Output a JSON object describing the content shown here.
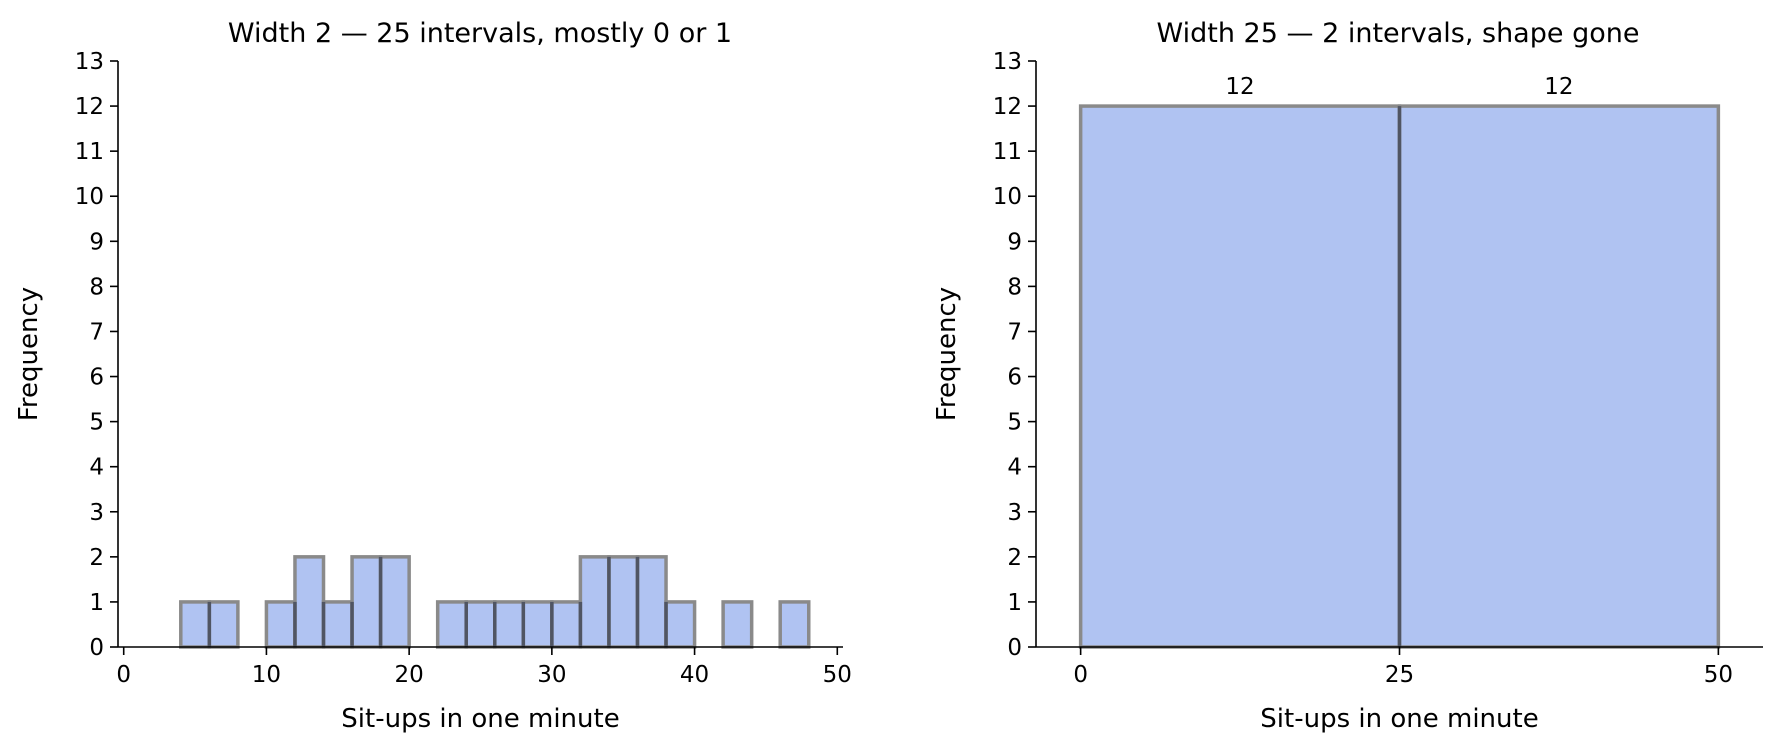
{
  "chart_data": [
    {
      "type": "bar",
      "title": "Width 2 — 25 intervals, mostly 0 or 1",
      "xlabel": "Sit-ups in one minute",
      "ylabel": "Frequency",
      "xlim": [
        -0.4,
        50.4
      ],
      "ylim": [
        0,
        13
      ],
      "x_ticks": [
        0,
        10,
        20,
        30,
        40,
        50
      ],
      "y_ticks": [
        0,
        1,
        2,
        3,
        4,
        5,
        6,
        7,
        8,
        9,
        10,
        11,
        12,
        13
      ],
      "bin_width": 2,
      "bin_edges": [
        0,
        2,
        4,
        6,
        8,
        10,
        12,
        14,
        16,
        18,
        20,
        22,
        24,
        26,
        28,
        30,
        32,
        34,
        36,
        38,
        40,
        42,
        44,
        46,
        48,
        50
      ],
      "values": [
        0,
        0,
        1,
        1,
        0,
        1,
        2,
        1,
        2,
        2,
        0,
        1,
        1,
        1,
        1,
        1,
        2,
        2,
        2,
        1,
        0,
        1,
        0,
        1,
        0
      ],
      "data_labels": [],
      "grid": false,
      "legend": "none"
    },
    {
      "type": "bar",
      "title": "Width 25 — 2 intervals, shape gone",
      "xlabel": "Sit-ups in one minute",
      "ylabel": "Frequency",
      "xlim": [
        -3.5,
        53.5
      ],
      "ylim": [
        0,
        13
      ],
      "x_ticks": [
        0,
        25,
        50
      ],
      "y_ticks": [
        0,
        1,
        2,
        3,
        4,
        5,
        6,
        7,
        8,
        9,
        10,
        11,
        12,
        13
      ],
      "bin_width": 25,
      "bin_edges": [
        0,
        25,
        50
      ],
      "values": [
        12,
        12
      ],
      "data_labels": [
        "12",
        "12"
      ],
      "grid": false,
      "legend": "none"
    }
  ],
  "colors": {
    "bar_fill": "#b0c3f2",
    "bar_edge": "#8a8a8a",
    "bar_divider": "#505563",
    "axis": "#000000"
  }
}
